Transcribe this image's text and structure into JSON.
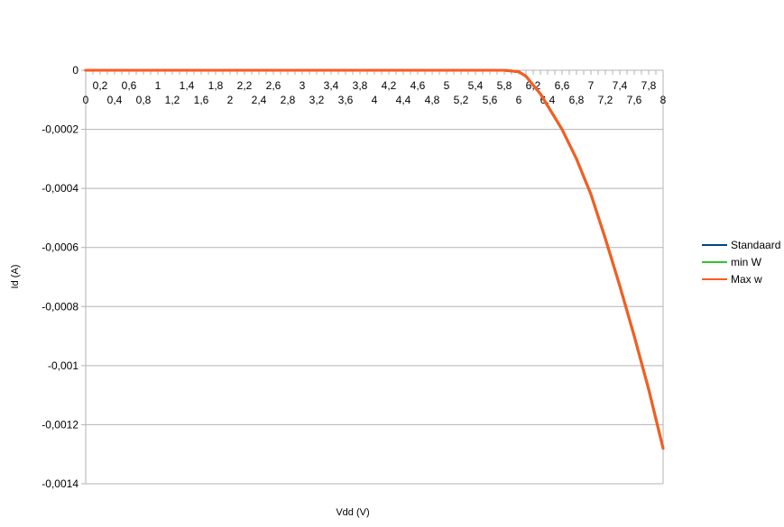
{
  "chart_data": {
    "type": "line",
    "title": "",
    "xlabel": "Vdd (V)",
    "ylabel": "Id (A)",
    "xlim": [
      0,
      8
    ],
    "ylim": [
      -0.0014,
      0
    ],
    "grid": "horizontal",
    "legend_position": "right",
    "y_ticks": [
      "0",
      "-0,0002",
      "-0,0004",
      "-0,0006",
      "-0,0008",
      "-0,001",
      "-0,0012",
      "-0,0014"
    ],
    "y_tick_values": [
      0,
      -0.0002,
      -0.0004,
      -0.0006,
      -0.0008,
      -0.001,
      -0.0012,
      -0.0014
    ],
    "x_ticks_upper": [
      "0,2",
      "0,6",
      "1",
      "1,4",
      "1,8",
      "2,2",
      "2,6",
      "3",
      "3,4",
      "3,8",
      "4,2",
      "4,6",
      "5",
      "5,4",
      "5,8",
      "6,2",
      "6,6",
      "7",
      "7,4",
      "7,8"
    ],
    "x_ticks_upper_values": [
      0.2,
      0.6,
      1.0,
      1.4,
      1.8,
      2.2,
      2.6,
      3.0,
      3.4,
      3.8,
      4.2,
      4.6,
      5.0,
      5.4,
      5.8,
      6.2,
      6.6,
      7.0,
      7.4,
      7.8
    ],
    "x_ticks_lower": [
      "0",
      "0,4",
      "0,8",
      "1,2",
      "1,6",
      "2",
      "2,4",
      "2,8",
      "3,2",
      "3,6",
      "4",
      "4,4",
      "4,8",
      "5,2",
      "5,6",
      "6",
      "6,4",
      "6,8",
      "7,2",
      "7,6",
      "8"
    ],
    "x_ticks_lower_values": [
      0,
      0.4,
      0.8,
      1.2,
      1.6,
      2.0,
      2.4,
      2.8,
      3.2,
      3.6,
      4.0,
      4.4,
      4.8,
      5.2,
      5.6,
      6.0,
      6.4,
      6.8,
      7.2,
      7.6,
      8.0
    ],
    "x": [
      0,
      0.5,
      1,
      1.5,
      2,
      2.5,
      3,
      3.5,
      4,
      4.5,
      5,
      5.5,
      5.8,
      6.0,
      6.1,
      6.2,
      6.3,
      6.4,
      6.6,
      6.8,
      7.0,
      7.2,
      7.4,
      7.6,
      7.8,
      8.0
    ],
    "series": [
      {
        "name": "Standaard",
        "color": "#004586",
        "values": [
          0,
          0,
          0,
          0,
          0,
          0,
          0,
          0,
          0,
          0,
          0,
          0,
          0,
          -5e-06,
          -2e-05,
          -5e-05,
          -8e-05,
          -0.00012,
          -0.0002,
          -0.0003,
          -0.00042,
          -0.00057,
          -0.00073,
          -0.0009,
          -0.00108,
          -0.00128
        ]
      },
      {
        "name": "min W",
        "color": "#2ec52e",
        "values": [
          0,
          0,
          0,
          0,
          0,
          0,
          0,
          0,
          0,
          0,
          0,
          0,
          0,
          -5e-06,
          -2e-05,
          -5e-05,
          -8e-05,
          -0.00012,
          -0.0002,
          -0.0003,
          -0.00042,
          -0.00057,
          -0.00073,
          -0.0009,
          -0.00108,
          -0.00128
        ]
      },
      {
        "name": "Max w",
        "color": "#ff5a1f",
        "values": [
          0,
          0,
          0,
          0,
          0,
          0,
          0,
          0,
          0,
          0,
          0,
          0,
          0,
          -5e-06,
          -2e-05,
          -5e-05,
          -8e-05,
          -0.00012,
          -0.0002,
          -0.0003,
          -0.00042,
          -0.00057,
          -0.00073,
          -0.0009,
          -0.00108,
          -0.00128
        ]
      }
    ]
  }
}
